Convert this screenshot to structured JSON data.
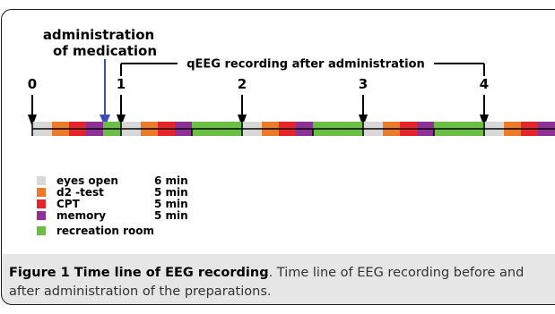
{
  "annotation": {
    "medication_line1": "administration",
    "medication_line2": "of medication",
    "recording_label": "qEEG recording after administration"
  },
  "timepoints": [
    "0",
    "1",
    "2",
    "3",
    "4"
  ],
  "legend": [
    {
      "name": "eyes open",
      "duration": "6 min",
      "color": "#d8d8d8"
    },
    {
      "name": "d2 -test",
      "duration": "5 min",
      "color": "#ec7a2b"
    },
    {
      "name": "CPT",
      "duration": "5 min",
      "color": "#e8242b"
    },
    {
      "name": "memory",
      "duration": "5 min",
      "color": "#8e3095"
    },
    {
      "name": "recreation room",
      "duration": "",
      "color": "#6bbf45"
    }
  ],
  "colors": {
    "eyes_open": "#d8d8d8",
    "d2_test": "#ec7a2b",
    "cpt": "#e8242b",
    "memory": "#8e3095",
    "recreation": "#6bbf45",
    "medication_arrow": "#3b4fb4"
  },
  "timeline_segments": [
    "eyes_open",
    "d2_test",
    "cpt",
    "memory",
    "recreation",
    "eyes_open",
    "d2_test",
    "cpt",
    "memory",
    "recreation",
    "eyes_open",
    "d2_test",
    "cpt",
    "memory",
    "recreation",
    "eyes_open",
    "d2_test",
    "cpt",
    "memory",
    "recreation",
    "eyes_open",
    "d2_test",
    "cpt",
    "memory"
  ],
  "caption": {
    "fig_label": "Figure 1 Time line of EEG recording",
    "text": ". Time line of EEG recording before and after administration of the preparations."
  }
}
